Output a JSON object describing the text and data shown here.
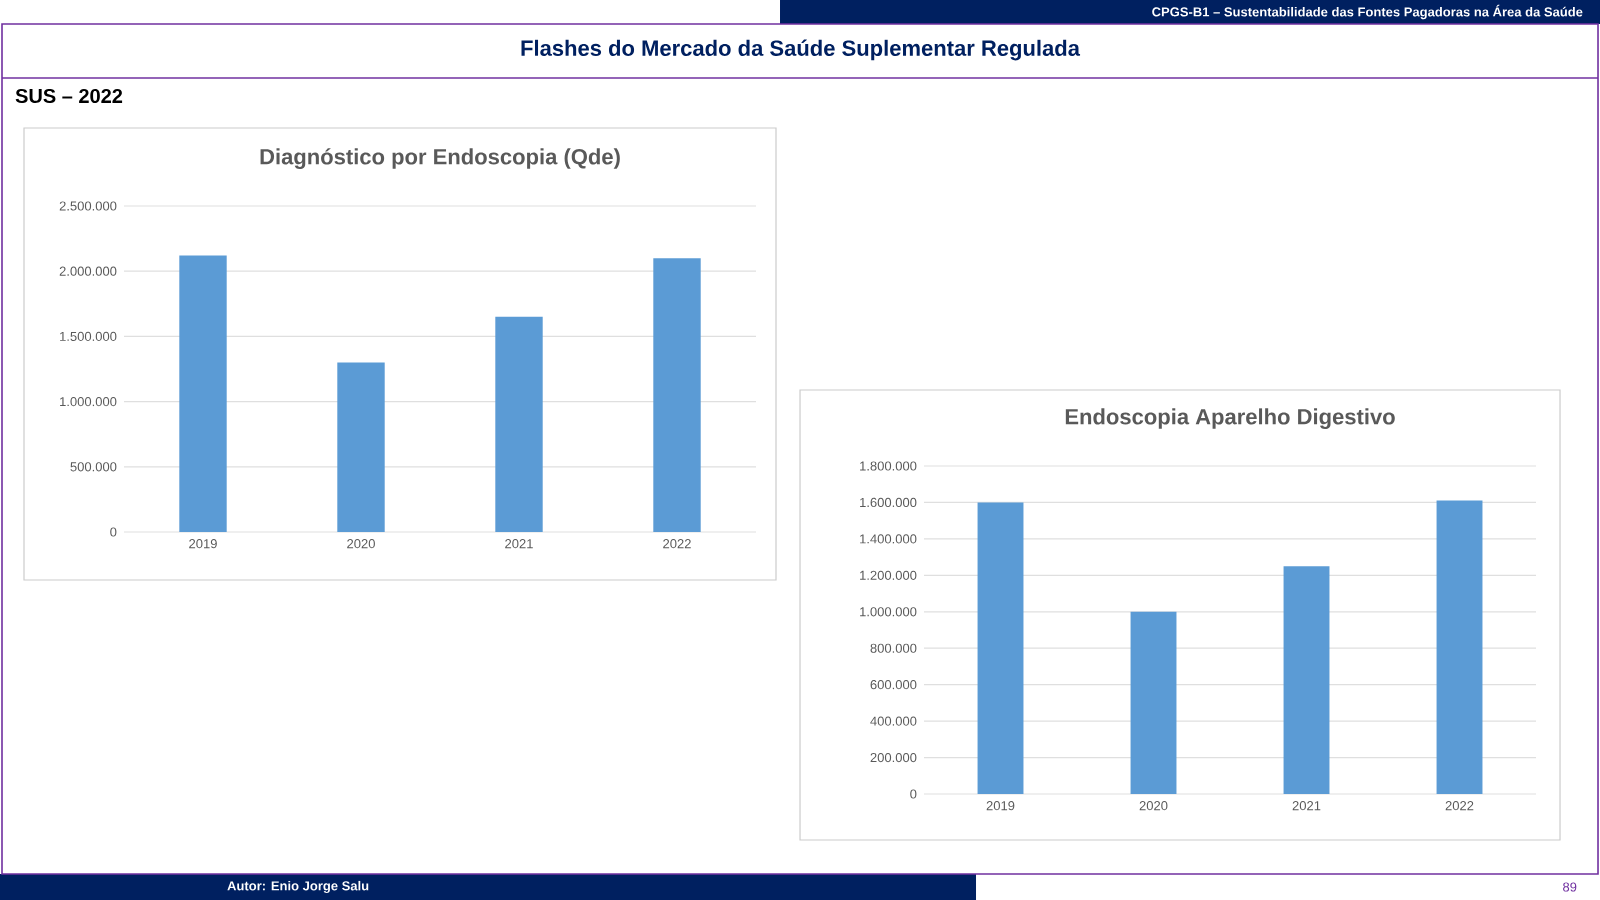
{
  "chart_data": [
    {
      "type": "bar",
      "title": "Diagnóstico por Endoscopia (Qde)",
      "categories": [
        "2019",
        "2020",
        "2021",
        "2022"
      ],
      "values": [
        2120000,
        1300000,
        1650000,
        2100000
      ],
      "color": "#5b9bd5",
      "ylim": [
        0,
        2500000
      ],
      "yticks": [
        0,
        {
          "value": 500000,
          "label": "500.000"
        },
        {
          "value": 1000000,
          "label": "1.000.000"
        },
        {
          "value": 1500000,
          "label": "1.500.000"
        },
        {
          "value": 2000000,
          "label": "2.000.000"
        },
        {
          "value": 2500000,
          "label": "2.500.000"
        }
      ],
      "grid": "y",
      "annotations": [
        "CPGS-B1 – Sustentabilidade  das Fontes Pagadoras na Área da Saúde",
        "Flashes do Mercado da Saúde Suplementar Regulada",
        "SUS – 2022",
        "Autor: Enio Jorge Salu",
        "89"
      ]
    },
    {
      "type": "bar",
      "title": "Endoscopia Aparelho Digestivo",
      "categories": [
        "2019",
        "2020",
        "2021",
        "2022"
      ],
      "values": [
        1600000,
        1000000,
        1250000,
        1610000
      ],
      "color": "#5b9bd5",
      "ylim": [
        0,
        1800000
      ],
      "yticks": [
        0,
        {
          "value": 200000,
          "label": "200.000"
        },
        {
          "value": 400000,
          "label": "400.000"
        },
        {
          "value": 600000,
          "label": "600.000"
        },
        {
          "value": 800000,
          "label": "800.000"
        },
        {
          "value": 1000000,
          "label": "1.000.000"
        },
        {
          "value": 1200000,
          "label": "1.200.000"
        },
        {
          "value": 1400000,
          "label": "1.400.000"
        },
        {
          "value": 1600000,
          "label": "1.600.000"
        },
        {
          "value": 1800000,
          "label": "1.800.000"
        }
      ],
      "grid": "y"
    }
  ]
}
